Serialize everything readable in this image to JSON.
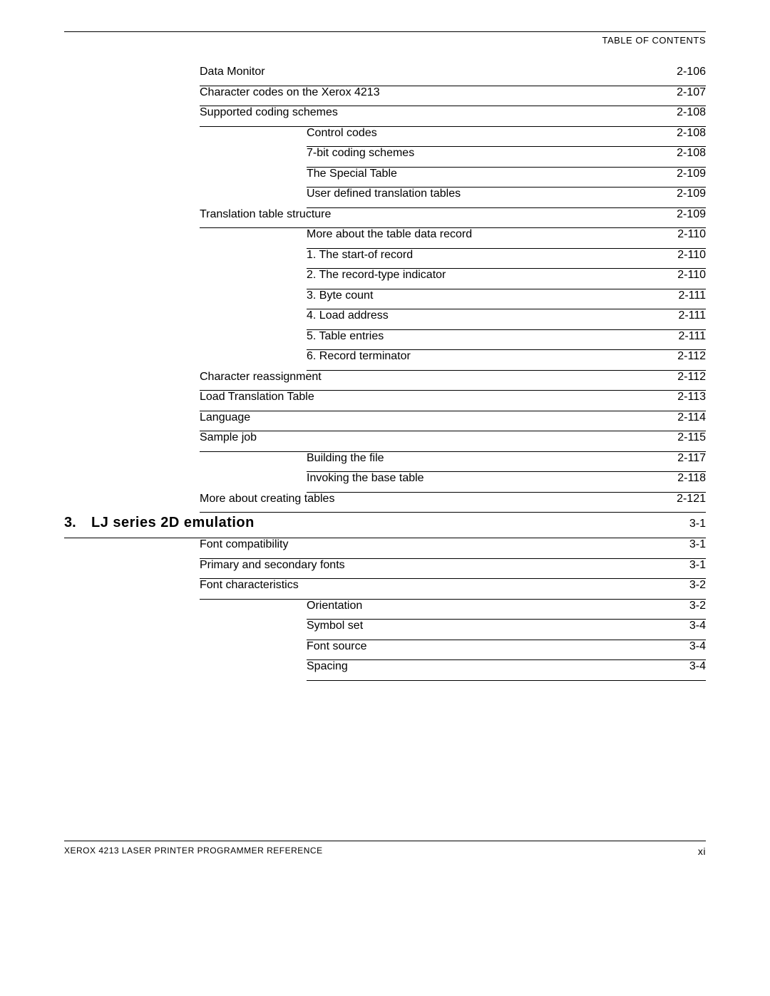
{
  "header": {
    "title": "TABLE OF CONTENTS"
  },
  "entries": [
    {
      "level": 1,
      "label": "Data Monitor",
      "page": "2-106"
    },
    {
      "level": 1,
      "label": "Character codes on the Xerox 4213",
      "page": "2-107"
    },
    {
      "level": 1,
      "label": "Supported coding schemes",
      "page": "2-108"
    },
    {
      "level": 2,
      "label": "Control codes",
      "page": "2-108"
    },
    {
      "level": 2,
      "label": "7-bit coding schemes",
      "page": "2-108"
    },
    {
      "level": 2,
      "label": "The Special Table",
      "page": "2-109"
    },
    {
      "level": 2,
      "label": "User defined translation tables",
      "page": "2-109"
    },
    {
      "level": 1,
      "label": "Translation table structure",
      "page": "2-109"
    },
    {
      "level": 2,
      "label": "More about the table data record",
      "page": "2-110"
    },
    {
      "level": 2,
      "label": "1.  The start-of record",
      "page": "2-110"
    },
    {
      "level": 2,
      "label": "2.  The record-type indicator",
      "page": "2-110"
    },
    {
      "level": 2,
      "label": "3.  Byte count",
      "page": "2-111"
    },
    {
      "level": 2,
      "label": "4.  Load address",
      "page": "2-111"
    },
    {
      "level": 2,
      "label": "5.  Table entries",
      "page": "2-111"
    },
    {
      "level": 2,
      "label": "6.  Record terminator",
      "page": "2-112"
    },
    {
      "level": 1,
      "label": "Character reassignment",
      "page": "2-112"
    },
    {
      "level": 1,
      "label": "Load Translation Table",
      "page": "2-113"
    },
    {
      "level": 1,
      "label": "Language",
      "page": "2-114"
    },
    {
      "level": 1,
      "label": "Sample job",
      "page": "2-115"
    },
    {
      "level": 2,
      "label": "Building the file",
      "page": "2-117"
    },
    {
      "level": 2,
      "label": "Invoking the base table",
      "page": "2-118"
    },
    {
      "level": 1,
      "label": "More about creating tables",
      "page": "2-121"
    }
  ],
  "chapter": {
    "num": "3.",
    "title": "LJ series 2D  emulation",
    "page": "3-1"
  },
  "chapter_entries": [
    {
      "level": 1,
      "label": "Font compatibility",
      "page": "3-1"
    },
    {
      "level": 1,
      "label": "Primary and secondary fonts",
      "page": "3-1"
    },
    {
      "level": 1,
      "label": "Font characteristics",
      "page": "3-2"
    },
    {
      "level": 2,
      "label": "Orientation",
      "page": "3-2"
    },
    {
      "level": 2,
      "label": "Symbol set",
      "page": "3-4"
    },
    {
      "level": 2,
      "label": "Font source",
      "page": "3-4"
    },
    {
      "level": 2,
      "label": "Spacing",
      "page": "3-4"
    }
  ],
  "footer": {
    "left": "XEROX 4213 LASER PRINTER PROGRAMMER REFERENCE",
    "right": "xi"
  }
}
